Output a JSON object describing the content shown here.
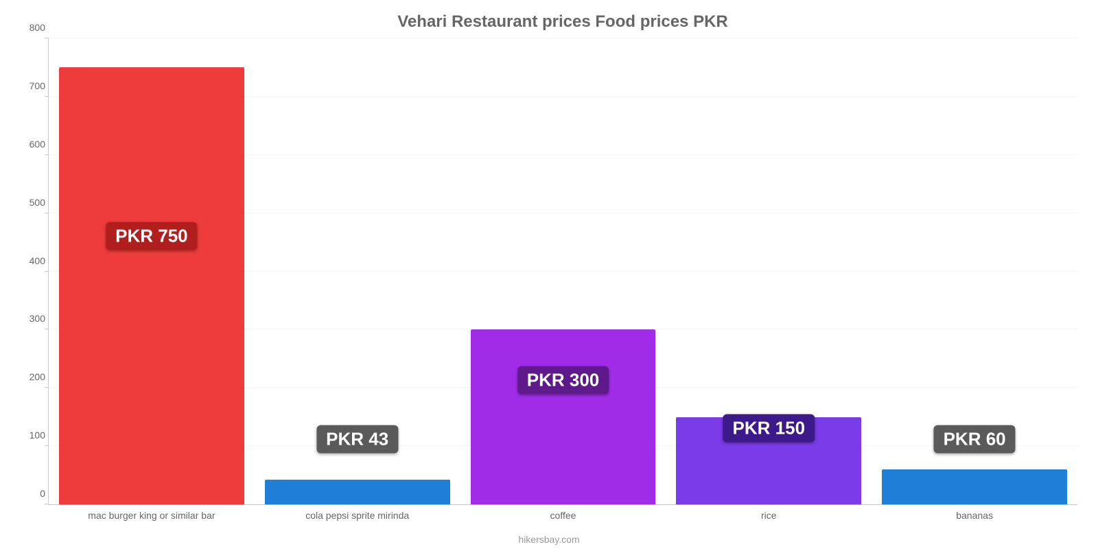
{
  "chart": {
    "type": "bar",
    "title": "Vehari Restaurant prices Food prices PKR",
    "title_fontsize": 24,
    "title_color": "#666666",
    "background_color": "#ffffff",
    "grid_color": "#f4f4f4",
    "axis_color": "#c9c9c9",
    "ylim": [
      0,
      800
    ],
    "ytick_step": 100,
    "yticks": [
      0,
      100,
      200,
      300,
      400,
      500,
      600,
      700,
      800
    ],
    "label_fontsize": 14,
    "label_color": "#666666",
    "bar_width_pct": 18,
    "categories": [
      "mac burger king or similar bar",
      "cola pepsi sprite mirinda",
      "coffee",
      "rice",
      "bananas"
    ],
    "values": [
      750,
      43,
      300,
      150,
      60
    ],
    "display_values": [
      "PKR 750",
      "PKR 43",
      "PKR 300",
      "PKR 150",
      "PKR 60"
    ],
    "bar_colors": [
      "#ee3b3b",
      "#1e7ed8",
      "#a02ce8",
      "#7a3be8",
      "#1e7ed8"
    ],
    "badge_colors": [
      "#b01e1e",
      "#5a5a5a",
      "#5e1a8a",
      "#3c1a8a",
      "#5a5a5a"
    ],
    "badge_text_color": "#ffffff",
    "badge_fontsize": 26,
    "caption": "hikersbay.com",
    "caption_color": "#999999"
  }
}
